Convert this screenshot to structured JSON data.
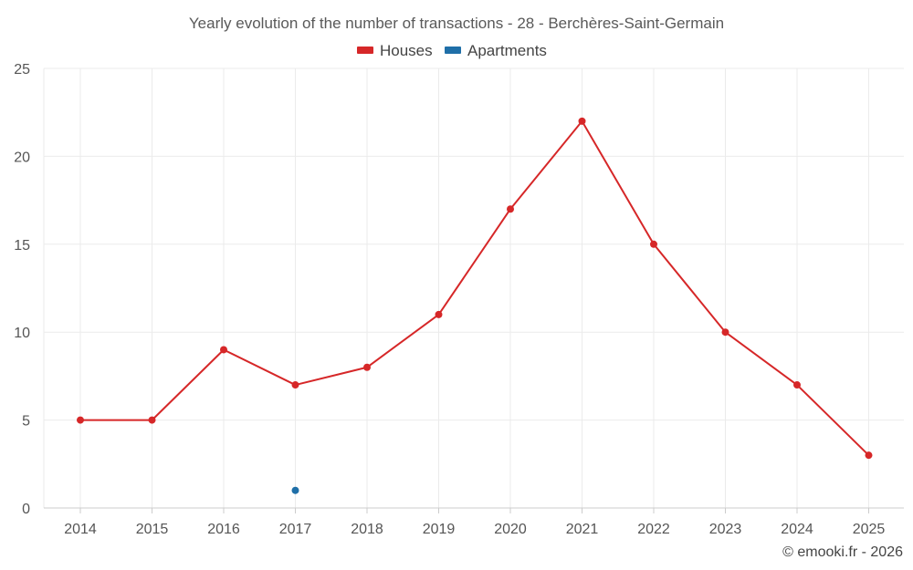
{
  "chart_data": {
    "type": "line",
    "title": "Yearly evolution of the number of transactions - 28 - Berchères-Saint-Germain",
    "categories": [
      "2014",
      "2015",
      "2016",
      "2017",
      "2018",
      "2019",
      "2020",
      "2021",
      "2022",
      "2023",
      "2024",
      "2025"
    ],
    "series": [
      {
        "name": "Houses",
        "color": "#d62728",
        "values": [
          5,
          5,
          9,
          7,
          8,
          11,
          17,
          22,
          15,
          10,
          7,
          3
        ]
      },
      {
        "name": "Apartments",
        "color": "#1f6fa8",
        "values": [
          null,
          null,
          null,
          1,
          null,
          null,
          null,
          null,
          null,
          null,
          null,
          null
        ]
      }
    ],
    "ylim": [
      0,
      25
    ],
    "yticks": [
      0,
      5,
      10,
      15,
      20,
      25
    ],
    "xlabel": "",
    "ylabel": "",
    "grid": true,
    "legend": "top-center"
  },
  "credit": "© emooki.fr - 2026"
}
